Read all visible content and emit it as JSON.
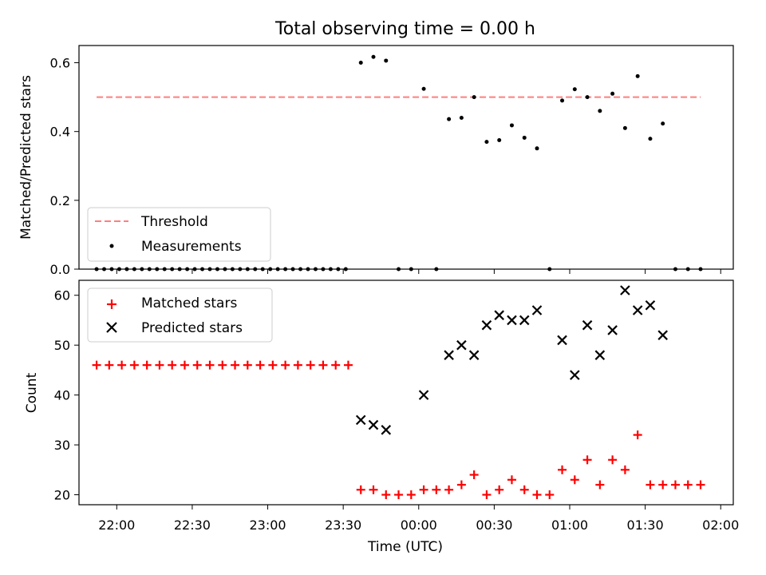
{
  "chart_data": [
    {
      "type": "scatter",
      "title": "Total observing time = 0.00 h",
      "ylabel": "Matched/Predicted stars",
      "ylim": [
        0,
        0.65
      ],
      "yticks": [
        "0.0",
        "0.2",
        "0.4",
        "0.6"
      ],
      "xlim": [
        "21:45",
        "02:05"
      ],
      "threshold": {
        "name": "Threshold",
        "value": 0.5,
        "x_start": "21:52",
        "x_end": "01:52",
        "color": "#ff7f7f"
      },
      "series": [
        {
          "name": "Measurements",
          "marker": "dot",
          "color": "#000000",
          "points": [
            [
              "21:52",
              0
            ],
            [
              "21:55",
              0
            ],
            [
              "21:58",
              0
            ],
            [
              "22:01",
              0
            ],
            [
              "22:04",
              0
            ],
            [
              "22:07",
              0
            ],
            [
              "22:10",
              0
            ],
            [
              "22:13",
              0
            ],
            [
              "22:16",
              0
            ],
            [
              "22:19",
              0
            ],
            [
              "22:22",
              0
            ],
            [
              "22:25",
              0
            ],
            [
              "22:28",
              0
            ],
            [
              "22:31",
              0
            ],
            [
              "22:34",
              0
            ],
            [
              "22:37",
              0
            ],
            [
              "22:40",
              0
            ],
            [
              "22:43",
              0
            ],
            [
              "22:46",
              0
            ],
            [
              "22:49",
              0
            ],
            [
              "22:52",
              0
            ],
            [
              "22:55",
              0
            ],
            [
              "22:58",
              0
            ],
            [
              "23:01",
              0
            ],
            [
              "23:04",
              0
            ],
            [
              "23:07",
              0
            ],
            [
              "23:10",
              0
            ],
            [
              "23:13",
              0
            ],
            [
              "23:16",
              0
            ],
            [
              "23:19",
              0
            ],
            [
              "23:22",
              0
            ],
            [
              "23:25",
              0
            ],
            [
              "23:28",
              0
            ],
            [
              "23:31",
              0
            ],
            [
              "23:37",
              0.6
            ],
            [
              "23:42",
              0.617
            ],
            [
              "23:47",
              0.606
            ],
            [
              "23:52",
              0
            ],
            [
              "23:57",
              0
            ],
            [
              "00:02",
              0.524
            ],
            [
              "00:07",
              0
            ],
            [
              "00:12",
              0.436
            ],
            [
              "00:17",
              0.44
            ],
            [
              "00:22",
              0.5
            ],
            [
              "00:27",
              0.37
            ],
            [
              "00:32",
              0.375
            ],
            [
              "00:37",
              0.418
            ],
            [
              "00:42",
              0.382
            ],
            [
              "00:47",
              0.351
            ],
            [
              "00:52",
              0
            ],
            [
              "00:57",
              0.49
            ],
            [
              "01:02",
              0.523
            ],
            [
              "01:07",
              0.5
            ],
            [
              "01:12",
              0.46
            ],
            [
              "01:17",
              0.51
            ],
            [
              "01:22",
              0.41
            ],
            [
              "01:27",
              0.561
            ],
            [
              "01:32",
              0.379
            ],
            [
              "01:37",
              0.423
            ],
            [
              "01:42",
              0
            ],
            [
              "01:47",
              0
            ],
            [
              "01:52",
              0
            ]
          ]
        }
      ],
      "legend": {
        "placement": "lower-left",
        "entries": [
          "Threshold",
          "Measurements"
        ]
      }
    },
    {
      "type": "scatter",
      "ylabel": "Count",
      "xlabel": "Time (UTC)",
      "ylim": [
        18,
        63
      ],
      "yticks": [
        "20",
        "30",
        "40",
        "50",
        "60"
      ],
      "xlim": [
        "21:45",
        "02:05"
      ],
      "xticks": [
        "22:00",
        "22:30",
        "23:00",
        "23:30",
        "00:00",
        "00:30",
        "01:00",
        "01:30",
        "02:00"
      ],
      "series": [
        {
          "name": "Matched stars",
          "marker": "plus",
          "color": "#ff0000",
          "points": [
            [
              "21:52",
              46
            ],
            [
              "21:57",
              46
            ],
            [
              "22:02",
              46
            ],
            [
              "22:07",
              46
            ],
            [
              "22:12",
              46
            ],
            [
              "22:17",
              46
            ],
            [
              "22:22",
              46
            ],
            [
              "22:27",
              46
            ],
            [
              "22:32",
              46
            ],
            [
              "22:37",
              46
            ],
            [
              "22:42",
              46
            ],
            [
              "22:47",
              46
            ],
            [
              "22:52",
              46
            ],
            [
              "22:57",
              46
            ],
            [
              "23:02",
              46
            ],
            [
              "23:07",
              46
            ],
            [
              "23:12",
              46
            ],
            [
              "23:17",
              46
            ],
            [
              "23:22",
              46
            ],
            [
              "23:27",
              46
            ],
            [
              "23:32",
              46
            ],
            [
              "23:37",
              21
            ],
            [
              "23:42",
              21
            ],
            [
              "23:47",
              20
            ],
            [
              "23:52",
              20
            ],
            [
              "23:57",
              20
            ],
            [
              "00:02",
              21
            ],
            [
              "00:07",
              21
            ],
            [
              "00:12",
              21
            ],
            [
              "00:17",
              22
            ],
            [
              "00:22",
              24
            ],
            [
              "00:27",
              20
            ],
            [
              "00:32",
              21
            ],
            [
              "00:37",
              23
            ],
            [
              "00:42",
              21
            ],
            [
              "00:47",
              20
            ],
            [
              "00:52",
              20
            ],
            [
              "00:57",
              25
            ],
            [
              "01:02",
              23
            ],
            [
              "01:07",
              27
            ],
            [
              "01:12",
              22
            ],
            [
              "01:17",
              27
            ],
            [
              "01:22",
              25
            ],
            [
              "01:27",
              32
            ],
            [
              "01:32",
              22
            ],
            [
              "01:37",
              22
            ],
            [
              "01:42",
              22
            ],
            [
              "01:47",
              22
            ],
            [
              "01:52",
              22
            ]
          ]
        },
        {
          "name": "Predicted stars",
          "marker": "x",
          "color": "#000000",
          "points": [
            [
              "23:37",
              35
            ],
            [
              "23:42",
              34
            ],
            [
              "23:47",
              33
            ],
            [
              "00:02",
              40
            ],
            [
              "00:12",
              48
            ],
            [
              "00:17",
              50
            ],
            [
              "00:22",
              48
            ],
            [
              "00:27",
              54
            ],
            [
              "00:32",
              56
            ],
            [
              "00:37",
              55
            ],
            [
              "00:42",
              55
            ],
            [
              "00:47",
              57
            ],
            [
              "00:57",
              51
            ],
            [
              "01:02",
              44
            ],
            [
              "01:07",
              54
            ],
            [
              "01:12",
              48
            ],
            [
              "01:17",
              53
            ],
            [
              "01:22",
              61
            ],
            [
              "01:27",
              57
            ],
            [
              "01:32",
              58
            ],
            [
              "01:37",
              52
            ]
          ]
        }
      ],
      "legend": {
        "placement": "upper-left",
        "entries": [
          "Matched stars",
          "Predicted stars"
        ]
      }
    }
  ]
}
